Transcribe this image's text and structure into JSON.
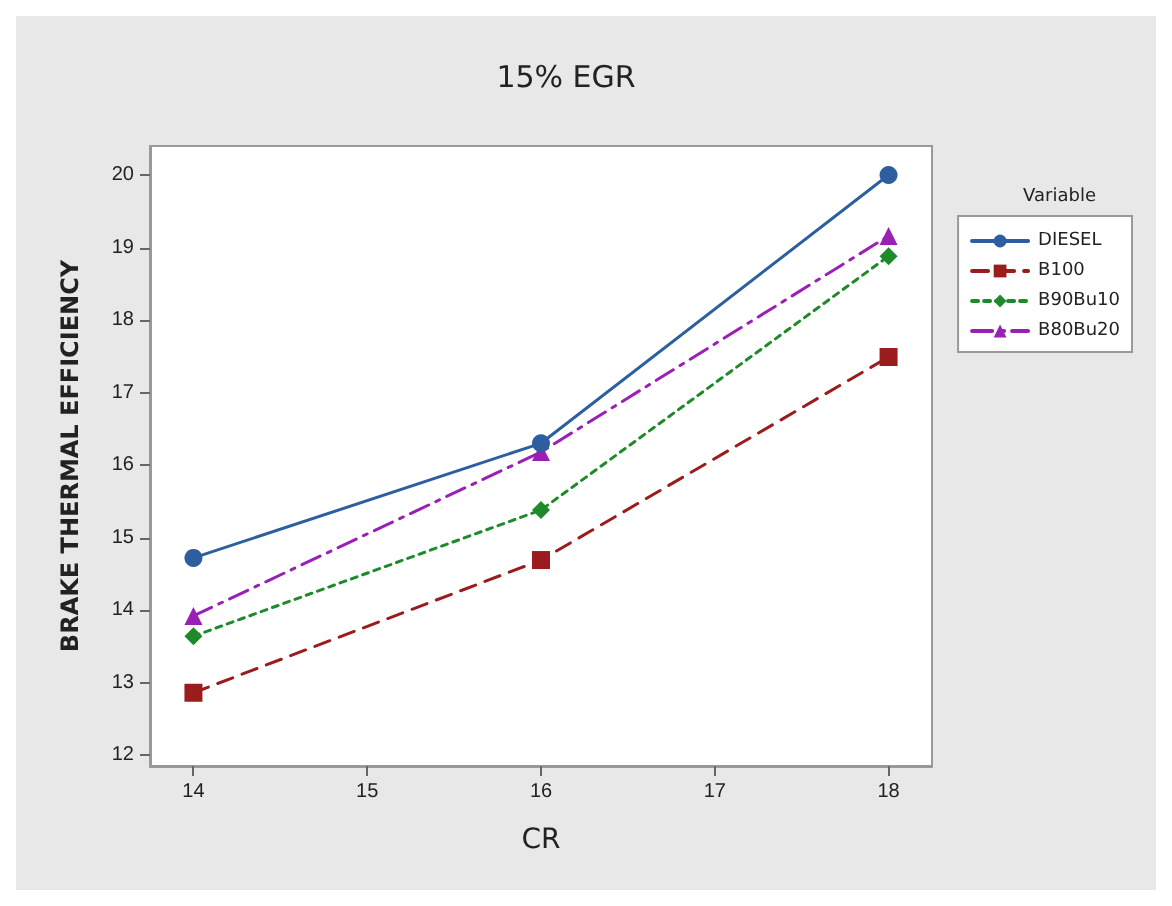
{
  "chart_data": {
    "type": "line",
    "title": "15% EGR",
    "xlabel": "CR",
    "ylabel": "BRAKE THERMAL EFFICIENCY",
    "legend_title": "Variable",
    "legend": "right",
    "x": [
      14,
      16,
      18
    ],
    "xlim": [
      13.75,
      18.25
    ],
    "xticks": [
      14,
      15,
      16,
      17,
      18
    ],
    "ylim": [
      11.85,
      20.4
    ],
    "yticks": [
      12,
      13,
      14,
      15,
      16,
      17,
      18,
      19,
      20
    ],
    "grid": false,
    "series": [
      {
        "name": "DIESEL",
        "color": "#2d5fa0",
        "values": [
          14.72,
          16.3,
          20.0
        ],
        "marker": "circle",
        "line_style": "solid"
      },
      {
        "name": "B100",
        "color": "#9b1c1c",
        "values": [
          12.86,
          14.69,
          17.49
        ],
        "marker": "square",
        "line_style": "dashed"
      },
      {
        "name": "B90Bu10",
        "color": "#1f8a2a",
        "values": [
          13.64,
          15.38,
          18.88
        ],
        "marker": "diamond",
        "line_style": "dotted"
      },
      {
        "name": "B80Bu20",
        "color": "#9a1fb5",
        "values": [
          13.92,
          16.18,
          19.16
        ],
        "marker": "triangle",
        "line_style": "dashdot"
      }
    ]
  }
}
